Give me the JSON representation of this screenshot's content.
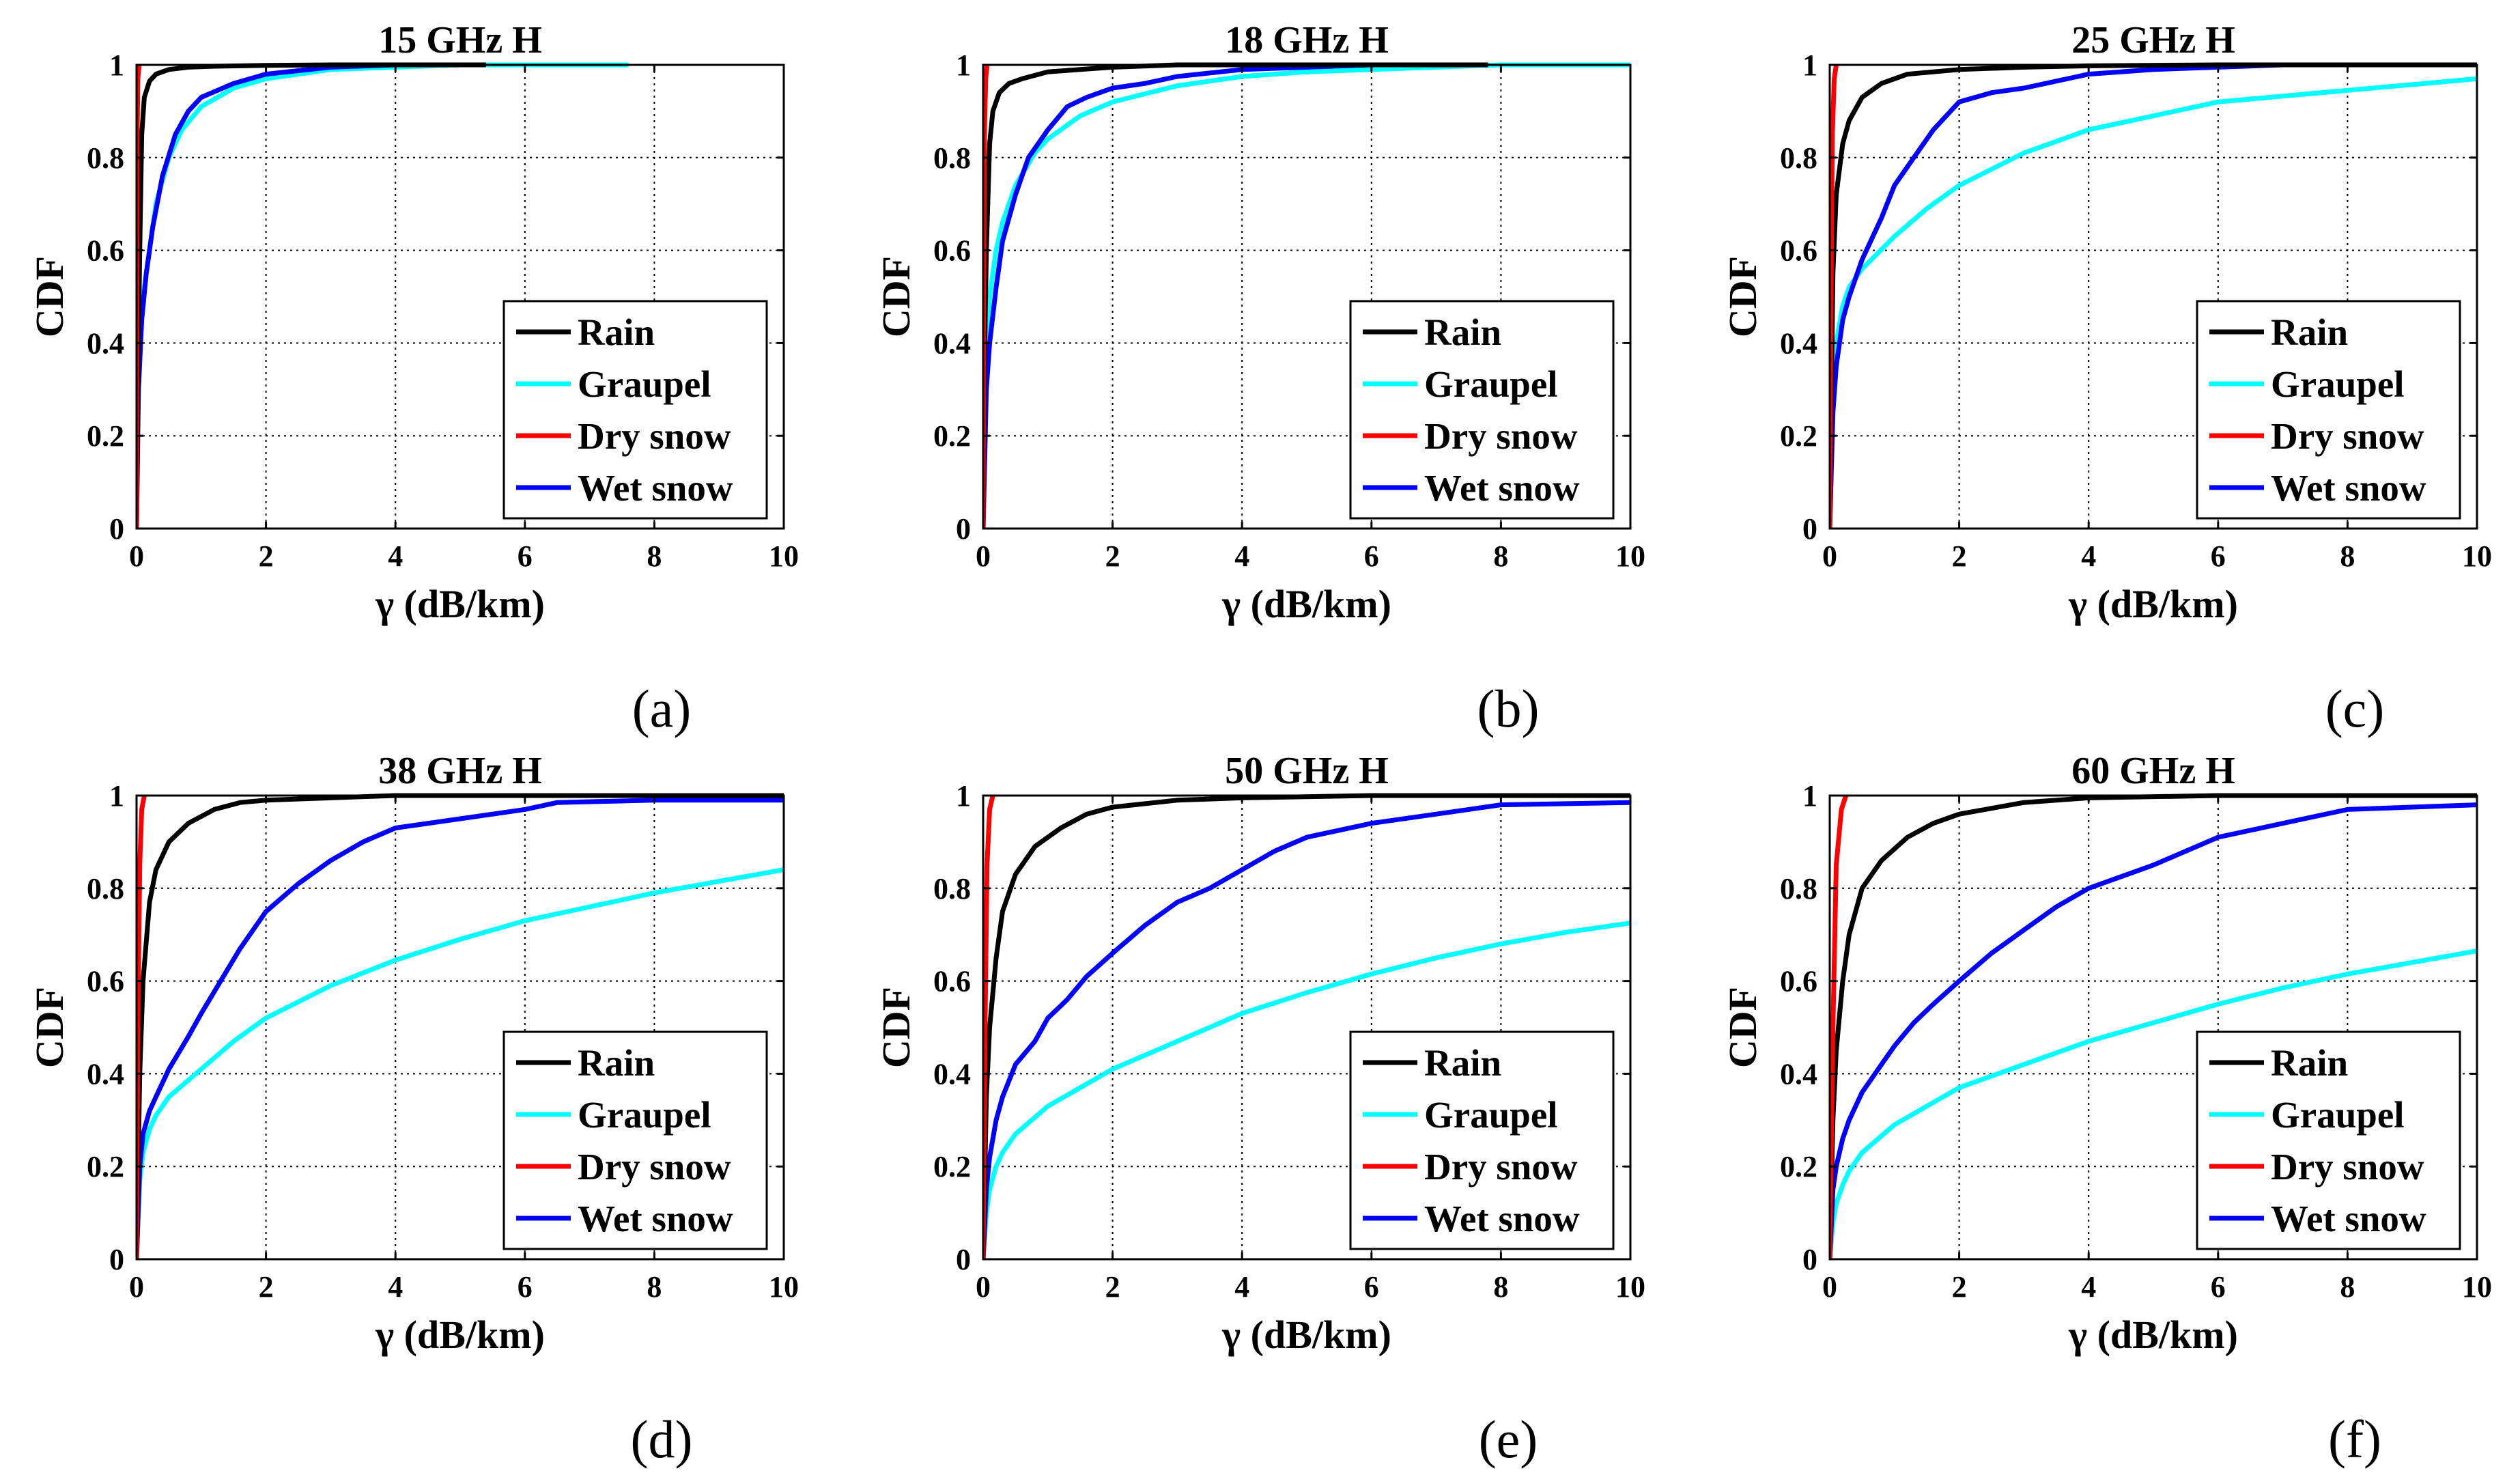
{
  "figure": {
    "panels_count": 6
  },
  "chart_data": [
    {
      "type": "line",
      "panel_label": "(a)",
      "title": "15 GHz H",
      "xlabel": "γ (dB/km)",
      "ylabel": "CDF",
      "xlim": [
        0,
        10
      ],
      "ylim": [
        0,
        1
      ],
      "xticks": [
        "0",
        "2",
        "4",
        "6",
        "8",
        "10"
      ],
      "yticks": [
        "0",
        "0.2",
        "0.4",
        "0.6",
        "0.8",
        "1"
      ],
      "grid": true,
      "legend_position": "bottom-right",
      "series": [
        {
          "name": "Rain",
          "color": "#000000",
          "x": [
            0,
            0.02,
            0.05,
            0.08,
            0.12,
            0.2,
            0.3,
            0.5,
            0.8,
            1.2,
            2,
            3,
            5.4
          ],
          "y": [
            0,
            0.3,
            0.6,
            0.85,
            0.93,
            0.965,
            0.98,
            0.99,
            0.995,
            0.997,
            0.999,
            1,
            1
          ]
        },
        {
          "name": "Graupel",
          "color": "#00ffff",
          "x": [
            0,
            0.02,
            0.05,
            0.1,
            0.2,
            0.3,
            0.5,
            0.7,
            1,
            1.5,
            2,
            3,
            4,
            5,
            7.6
          ],
          "y": [
            0,
            0.25,
            0.4,
            0.5,
            0.6,
            0.7,
            0.8,
            0.86,
            0.91,
            0.95,
            0.97,
            0.99,
            0.995,
            1,
            1
          ]
        },
        {
          "name": "Dry snow",
          "color": "#ff0000",
          "x": [
            0,
            0.005,
            0.01,
            0.02,
            0.04
          ],
          "y": [
            0,
            0.5,
            0.85,
            0.97,
            1
          ]
        },
        {
          "name": "Wet snow",
          "color": "#0000ff",
          "x": [
            0,
            0.03,
            0.08,
            0.15,
            0.25,
            0.4,
            0.6,
            0.8,
            1,
            1.5,
            2,
            3,
            4
          ],
          "y": [
            0,
            0.3,
            0.45,
            0.55,
            0.65,
            0.76,
            0.85,
            0.9,
            0.93,
            0.96,
            0.98,
            0.995,
            1
          ]
        }
      ]
    },
    {
      "type": "line",
      "panel_label": "(b)",
      "title": "18 GHz H",
      "xlabel": "γ (dB/km)",
      "ylabel": "CDF",
      "xlim": [
        0,
        10
      ],
      "ylim": [
        0,
        1
      ],
      "xticks": [
        "0",
        "2",
        "4",
        "6",
        "8",
        "10"
      ],
      "yticks": [
        "0",
        "0.2",
        "0.4",
        "0.6",
        "0.8",
        "1"
      ],
      "grid": true,
      "legend_position": "bottom-right",
      "series": [
        {
          "name": "Rain",
          "color": "#000000",
          "x": [
            0,
            0.02,
            0.05,
            0.1,
            0.15,
            0.25,
            0.4,
            0.6,
            1,
            1.5,
            2,
            3,
            5,
            7.8
          ],
          "y": [
            0,
            0.35,
            0.6,
            0.83,
            0.9,
            0.94,
            0.96,
            0.97,
            0.985,
            0.99,
            0.995,
            1,
            1,
            1
          ]
        },
        {
          "name": "Graupel",
          "color": "#00ffff",
          "x": [
            0,
            0.05,
            0.1,
            0.2,
            0.3,
            0.5,
            0.8,
            1,
            1.5,
            2,
            3,
            4,
            5,
            6,
            8,
            10
          ],
          "y": [
            0,
            0.38,
            0.5,
            0.6,
            0.66,
            0.74,
            0.81,
            0.84,
            0.89,
            0.92,
            0.955,
            0.975,
            0.985,
            0.99,
            1,
            1
          ]
        },
        {
          "name": "Dry snow",
          "color": "#ff0000",
          "x": [
            0,
            0.01,
            0.02,
            0.04,
            0.06
          ],
          "y": [
            0,
            0.5,
            0.85,
            0.97,
            1
          ]
        },
        {
          "name": "Wet snow",
          "color": "#0000ff",
          "x": [
            0,
            0.05,
            0.1,
            0.2,
            0.3,
            0.5,
            0.7,
            1,
            1.3,
            1.6,
            2,
            2.5,
            3,
            4,
            5,
            6,
            7.8
          ],
          "y": [
            0,
            0.3,
            0.4,
            0.52,
            0.62,
            0.72,
            0.8,
            0.86,
            0.91,
            0.93,
            0.95,
            0.96,
            0.975,
            0.99,
            0.995,
            1,
            1
          ]
        }
      ]
    },
    {
      "type": "line",
      "panel_label": "(c)",
      "title": "25 GHz H",
      "xlabel": "γ (dB/km)",
      "ylabel": "CDF",
      "xlim": [
        0,
        10
      ],
      "ylim": [
        0,
        1
      ],
      "xticks": [
        "0",
        "2",
        "4",
        "6",
        "8",
        "10"
      ],
      "yticks": [
        "0",
        "0.2",
        "0.4",
        "0.6",
        "0.8",
        "1"
      ],
      "grid": true,
      "legend_position": "bottom-right",
      "series": [
        {
          "name": "Rain",
          "color": "#000000",
          "x": [
            0,
            0.05,
            0.1,
            0.2,
            0.3,
            0.5,
            0.8,
            1.2,
            2,
            3,
            4,
            6,
            10
          ],
          "y": [
            0,
            0.55,
            0.72,
            0.83,
            0.88,
            0.93,
            0.96,
            0.98,
            0.99,
            0.995,
            0.998,
            1,
            1
          ]
        },
        {
          "name": "Graupel",
          "color": "#00ffff",
          "x": [
            0,
            0.05,
            0.1,
            0.2,
            0.3,
            0.5,
            1,
            1.5,
            2,
            3,
            4,
            5,
            6,
            8,
            10
          ],
          "y": [
            0,
            0.3,
            0.4,
            0.48,
            0.52,
            0.56,
            0.63,
            0.69,
            0.74,
            0.81,
            0.86,
            0.89,
            0.92,
            0.945,
            0.97
          ]
        },
        {
          "name": "Dry snow",
          "color": "#ff0000",
          "x": [
            0,
            0.02,
            0.04,
            0.07,
            0.1
          ],
          "y": [
            0,
            0.5,
            0.85,
            0.97,
            1
          ]
        },
        {
          "name": "Wet snow",
          "color": "#0000ff",
          "x": [
            0,
            0.05,
            0.1,
            0.2,
            0.3,
            0.5,
            0.8,
            1,
            1.3,
            1.6,
            2,
            2.5,
            3,
            4,
            5,
            6,
            7,
            8,
            10
          ],
          "y": [
            0,
            0.25,
            0.35,
            0.45,
            0.5,
            0.58,
            0.67,
            0.74,
            0.8,
            0.86,
            0.92,
            0.94,
            0.95,
            0.98,
            0.99,
            0.995,
            1,
            1,
            1
          ]
        }
      ]
    },
    {
      "type": "line",
      "panel_label": "(d)",
      "title": "38 GHz H",
      "xlabel": "γ (dB/km)",
      "ylabel": "CDF",
      "xlim": [
        0,
        10
      ],
      "ylim": [
        0,
        1
      ],
      "xticks": [
        "0",
        "2",
        "4",
        "6",
        "8",
        "10"
      ],
      "yticks": [
        "0",
        "0.2",
        "0.4",
        "0.6",
        "0.8",
        "1"
      ],
      "grid": true,
      "legend_position": "bottom-right",
      "series": [
        {
          "name": "Rain",
          "color": "#000000",
          "x": [
            0,
            0.05,
            0.1,
            0.2,
            0.3,
            0.5,
            0.8,
            1.2,
            1.6,
            2,
            3,
            4,
            6,
            8,
            10
          ],
          "y": [
            0,
            0.4,
            0.6,
            0.77,
            0.84,
            0.9,
            0.94,
            0.97,
            0.985,
            0.99,
            0.995,
            1,
            1,
            1,
            1
          ]
        },
        {
          "name": "Graupel",
          "color": "#00ffff",
          "x": [
            0,
            0.05,
            0.1,
            0.2,
            0.3,
            0.5,
            1,
            1.5,
            2,
            3,
            4,
            5,
            6,
            7,
            8,
            9,
            10
          ],
          "y": [
            0,
            0.17,
            0.23,
            0.28,
            0.31,
            0.35,
            0.41,
            0.47,
            0.52,
            0.59,
            0.645,
            0.69,
            0.73,
            0.76,
            0.79,
            0.815,
            0.84
          ]
        },
        {
          "name": "Dry snow",
          "color": "#ff0000",
          "x": [
            0,
            0.02,
            0.05,
            0.08,
            0.12
          ],
          "y": [
            0,
            0.5,
            0.85,
            0.97,
            1
          ]
        },
        {
          "name": "Wet snow",
          "color": "#0000ff",
          "x": [
            0,
            0.05,
            0.1,
            0.2,
            0.3,
            0.5,
            0.8,
            1,
            1.3,
            1.6,
            2,
            2.5,
            3,
            3.5,
            4,
            5,
            6,
            6.5,
            8,
            10
          ],
          "y": [
            0,
            0.2,
            0.27,
            0.32,
            0.35,
            0.41,
            0.48,
            0.53,
            0.6,
            0.67,
            0.75,
            0.81,
            0.86,
            0.9,
            0.93,
            0.95,
            0.97,
            0.985,
            0.99,
            0.99
          ]
        }
      ]
    },
    {
      "type": "line",
      "panel_label": "(e)",
      "title": "50 GHz H",
      "xlabel": "γ (dB/km)",
      "ylabel": "CDF",
      "xlim": [
        0,
        10
      ],
      "ylim": [
        0,
        1
      ],
      "xticks": [
        "0",
        "2",
        "4",
        "6",
        "8",
        "10"
      ],
      "yticks": [
        "0",
        "0.2",
        "0.4",
        "0.6",
        "0.8",
        "1"
      ],
      "grid": true,
      "legend_position": "bottom-right",
      "series": [
        {
          "name": "Rain",
          "color": "#000000",
          "x": [
            0,
            0.05,
            0.1,
            0.2,
            0.3,
            0.5,
            0.8,
            1.2,
            1.6,
            2,
            3,
            4,
            6,
            8,
            10
          ],
          "y": [
            0,
            0.35,
            0.5,
            0.65,
            0.75,
            0.83,
            0.89,
            0.93,
            0.96,
            0.975,
            0.99,
            0.995,
            1,
            1,
            1
          ]
        },
        {
          "name": "Graupel",
          "color": "#00ffff",
          "x": [
            0,
            0.05,
            0.1,
            0.2,
            0.3,
            0.5,
            1,
            1.5,
            2,
            3,
            4,
            5,
            6,
            7,
            8,
            9,
            10
          ],
          "y": [
            0,
            0.1,
            0.15,
            0.2,
            0.23,
            0.27,
            0.33,
            0.37,
            0.41,
            0.47,
            0.53,
            0.575,
            0.615,
            0.65,
            0.68,
            0.705,
            0.725
          ]
        },
        {
          "name": "Dry snow",
          "color": "#ff0000",
          "x": [
            0,
            0.03,
            0.06,
            0.1,
            0.15
          ],
          "y": [
            0,
            0.5,
            0.85,
            0.97,
            1
          ]
        },
        {
          "name": "Wet snow",
          "color": "#0000ff",
          "x": [
            0,
            0.05,
            0.1,
            0.2,
            0.3,
            0.5,
            0.8,
            1,
            1.3,
            1.6,
            2,
            2.5,
            3,
            3.5,
            4,
            4.5,
            5,
            6,
            7,
            8,
            10
          ],
          "y": [
            0,
            0.15,
            0.22,
            0.3,
            0.35,
            0.42,
            0.47,
            0.52,
            0.56,
            0.61,
            0.66,
            0.72,
            0.77,
            0.8,
            0.84,
            0.88,
            0.91,
            0.94,
            0.96,
            0.98,
            0.985
          ]
        }
      ]
    },
    {
      "type": "line",
      "panel_label": "(f)",
      "title": "60 GHz H",
      "xlabel": "γ (dB/km)",
      "ylabel": "CDF",
      "xlim": [
        0,
        10
      ],
      "ylim": [
        0,
        1
      ],
      "xticks": [
        "0",
        "2",
        "4",
        "6",
        "8",
        "10"
      ],
      "yticks": [
        "0",
        "0.2",
        "0.4",
        "0.6",
        "0.8",
        "1"
      ],
      "grid": true,
      "legend_position": "bottom-right",
      "series": [
        {
          "name": "Rain",
          "color": "#000000",
          "x": [
            0,
            0.05,
            0.1,
            0.2,
            0.3,
            0.5,
            0.8,
            1.2,
            1.6,
            2,
            3,
            4,
            6,
            8,
            10
          ],
          "y": [
            0,
            0.3,
            0.45,
            0.6,
            0.7,
            0.8,
            0.86,
            0.91,
            0.94,
            0.96,
            0.985,
            0.995,
            1,
            1,
            1
          ]
        },
        {
          "name": "Graupel",
          "color": "#00ffff",
          "x": [
            0,
            0.05,
            0.1,
            0.2,
            0.3,
            0.5,
            1,
            1.5,
            2,
            3,
            4,
            5,
            6,
            7,
            8,
            9,
            10
          ],
          "y": [
            0,
            0.08,
            0.12,
            0.16,
            0.19,
            0.23,
            0.29,
            0.33,
            0.37,
            0.42,
            0.47,
            0.51,
            0.55,
            0.585,
            0.615,
            0.64,
            0.665
          ]
        },
        {
          "name": "Dry snow",
          "color": "#ff0000",
          "x": [
            0,
            0.05,
            0.1,
            0.18,
            0.25
          ],
          "y": [
            0,
            0.5,
            0.85,
            0.97,
            1
          ]
        },
        {
          "name": "Wet snow",
          "color": "#0000ff",
          "x": [
            0,
            0.05,
            0.1,
            0.2,
            0.3,
            0.5,
            0.8,
            1,
            1.3,
            1.6,
            2,
            2.5,
            3,
            3.5,
            4,
            5,
            6,
            7,
            8,
            10
          ],
          "y": [
            0,
            0.15,
            0.2,
            0.26,
            0.3,
            0.36,
            0.42,
            0.46,
            0.51,
            0.55,
            0.6,
            0.66,
            0.71,
            0.76,
            0.8,
            0.85,
            0.91,
            0.94,
            0.97,
            0.98
          ]
        }
      ]
    }
  ]
}
